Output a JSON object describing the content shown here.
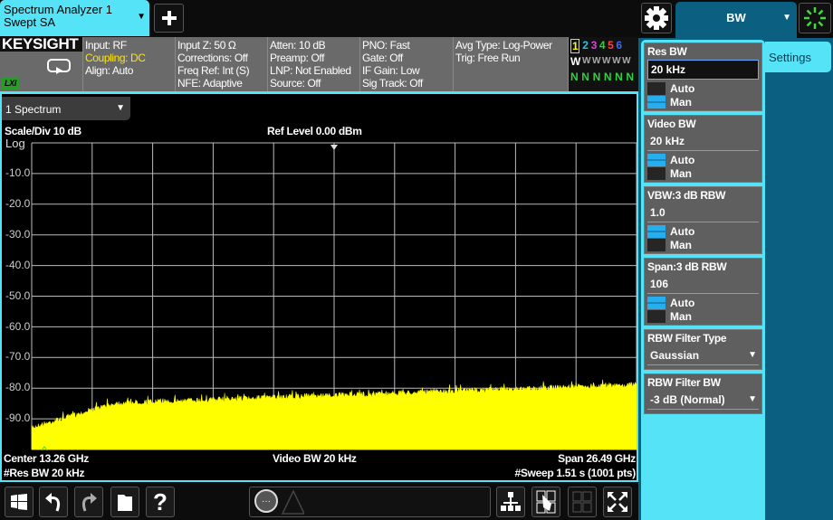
{
  "tab": {
    "title": "Spectrum Analyzer 1",
    "subtitle": "Swept SA"
  },
  "menu": {
    "label": "BW",
    "settings_tab": "Settings"
  },
  "brand": "KEYSIGHT",
  "lxi": "LXI",
  "info": [
    [
      "Input: RF",
      "Coupling: DC",
      "Align: Auto"
    ],
    [
      "Input Z: 50 Ω",
      "Corrections: Off",
      "Freq Ref: Int (S)",
      "NFE: Adaptive"
    ],
    [
      "Atten: 10 dB",
      "Preamp: Off",
      "LNP: Not Enabled",
      "Source: Off"
    ],
    [
      "PNO: Fast",
      "Gate: Off",
      "IF Gain: Low",
      "Sig Track: Off"
    ],
    [
      "Avg Type: Log-Power",
      "Trig: Free Run"
    ]
  ],
  "highlight_color": "#ffe600",
  "traces": {
    "numbers": [
      "1",
      "2",
      "3",
      "4",
      "5",
      "6"
    ],
    "colors": [
      "#ffff00",
      "#27c4e8",
      "#e040e0",
      "#30d040",
      "#ff4040",
      "#3a6cff"
    ],
    "types": [
      "W",
      "W",
      "W",
      "W",
      "W",
      "W"
    ],
    "detectors": [
      "N",
      "N",
      "N",
      "N",
      "N",
      "N"
    ]
  },
  "window": {
    "selector": "1 Spectrum",
    "scale": "Scale/Div 10 dB",
    "ref_level": "Ref Level 0.00 dBm",
    "scale_type": "Log",
    "y_labels": [
      "-10.0",
      "-20.0",
      "-30.0",
      "-40.0",
      "-50.0",
      "-60.0",
      "-70.0",
      "-80.0",
      "-90.0"
    ],
    "center": "Center 13.26 GHz",
    "vbw": "Video BW 20 kHz",
    "span": "Span 26.49 GHz",
    "rbw": "#Res BW 20 kHz",
    "sweep": "#Sweep 1.51 s (1001 pts)"
  },
  "chart_data": {
    "type": "line",
    "ylim": [
      -100,
      0
    ],
    "ref_level_dbm": 0,
    "scale_db_per_div": 10,
    "trace_color": "#ffff00",
    "noise_floor_dbm": {
      "start": -92,
      "knee": -84,
      "end": -78
    }
  },
  "panel": {
    "res_bw": {
      "title": "Res BW",
      "value": "20 kHz",
      "auto": "Auto",
      "man": "Man",
      "mode": "Man"
    },
    "video_bw": {
      "title": "Video BW",
      "value": "20 kHz",
      "auto": "Auto",
      "man": "Man",
      "mode": "Auto"
    },
    "vbw_rbw": {
      "title": "VBW:3 dB RBW",
      "value": "1.0",
      "auto": "Auto",
      "man": "Man",
      "mode": "Auto"
    },
    "span_rbw": {
      "title": "Span:3 dB RBW",
      "value": "106",
      "auto": "Auto",
      "man": "Man",
      "mode": "Auto"
    },
    "filter_type": {
      "title": "RBW Filter Type",
      "value": "Gaussian"
    },
    "filter_bw": {
      "title": "RBW Filter BW",
      "value": "-3 dB (Normal)"
    }
  },
  "dropdown_arrow": "▼"
}
